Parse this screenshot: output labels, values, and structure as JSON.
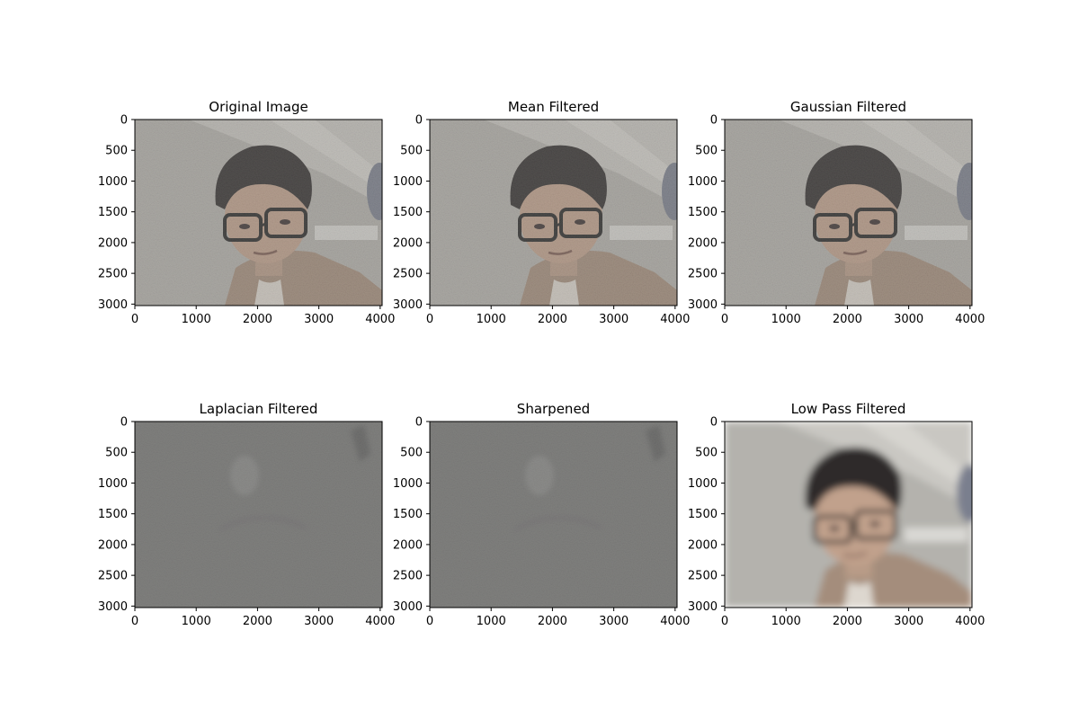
{
  "chart_data": [
    {
      "type": "image",
      "title": "Original Image",
      "style": "noisy",
      "xlim": [
        0,
        4032
      ],
      "ylim": [
        3024,
        0
      ],
      "xticks": [
        0,
        1000,
        2000,
        3000,
        4000
      ],
      "yticks": [
        0,
        500,
        1000,
        1500,
        2000,
        2500,
        3000
      ]
    },
    {
      "type": "image",
      "title": "Mean Filtered",
      "style": "noisy",
      "xlim": [
        0,
        4032
      ],
      "ylim": [
        3024,
        0
      ],
      "xticks": [
        0,
        1000,
        2000,
        3000,
        4000
      ],
      "yticks": [
        0,
        500,
        1000,
        1500,
        2000,
        2500,
        3000
      ]
    },
    {
      "type": "image",
      "title": "Gaussian Filtered",
      "style": "noisy",
      "xlim": [
        0,
        4032
      ],
      "ylim": [
        3024,
        0
      ],
      "xticks": [
        0,
        1000,
        2000,
        3000,
        4000
      ],
      "yticks": [
        0,
        500,
        1000,
        1500,
        2000,
        2500,
        3000
      ]
    },
    {
      "type": "image",
      "title": "Laplacian Filtered",
      "style": "edges",
      "xlim": [
        0,
        4032
      ],
      "ylim": [
        3024,
        0
      ],
      "xticks": [
        0,
        1000,
        2000,
        3000,
        4000
      ],
      "yticks": [
        0,
        500,
        1000,
        1500,
        2000,
        2500,
        3000
      ]
    },
    {
      "type": "image",
      "title": "Sharpened",
      "style": "edges",
      "xlim": [
        0,
        4032
      ],
      "ylim": [
        3024,
        0
      ],
      "xticks": [
        0,
        1000,
        2000,
        3000,
        4000
      ],
      "yticks": [
        0,
        500,
        1000,
        1500,
        2000,
        2500,
        3000
      ]
    },
    {
      "type": "image",
      "title": "Low Pass Filtered",
      "style": "blurred",
      "xlim": [
        0,
        4032
      ],
      "ylim": [
        3024,
        0
      ],
      "xticks": [
        0,
        1000,
        2000,
        3000,
        4000
      ],
      "yticks": [
        0,
        500,
        1000,
        1500,
        2000,
        2500,
        3000
      ]
    }
  ]
}
